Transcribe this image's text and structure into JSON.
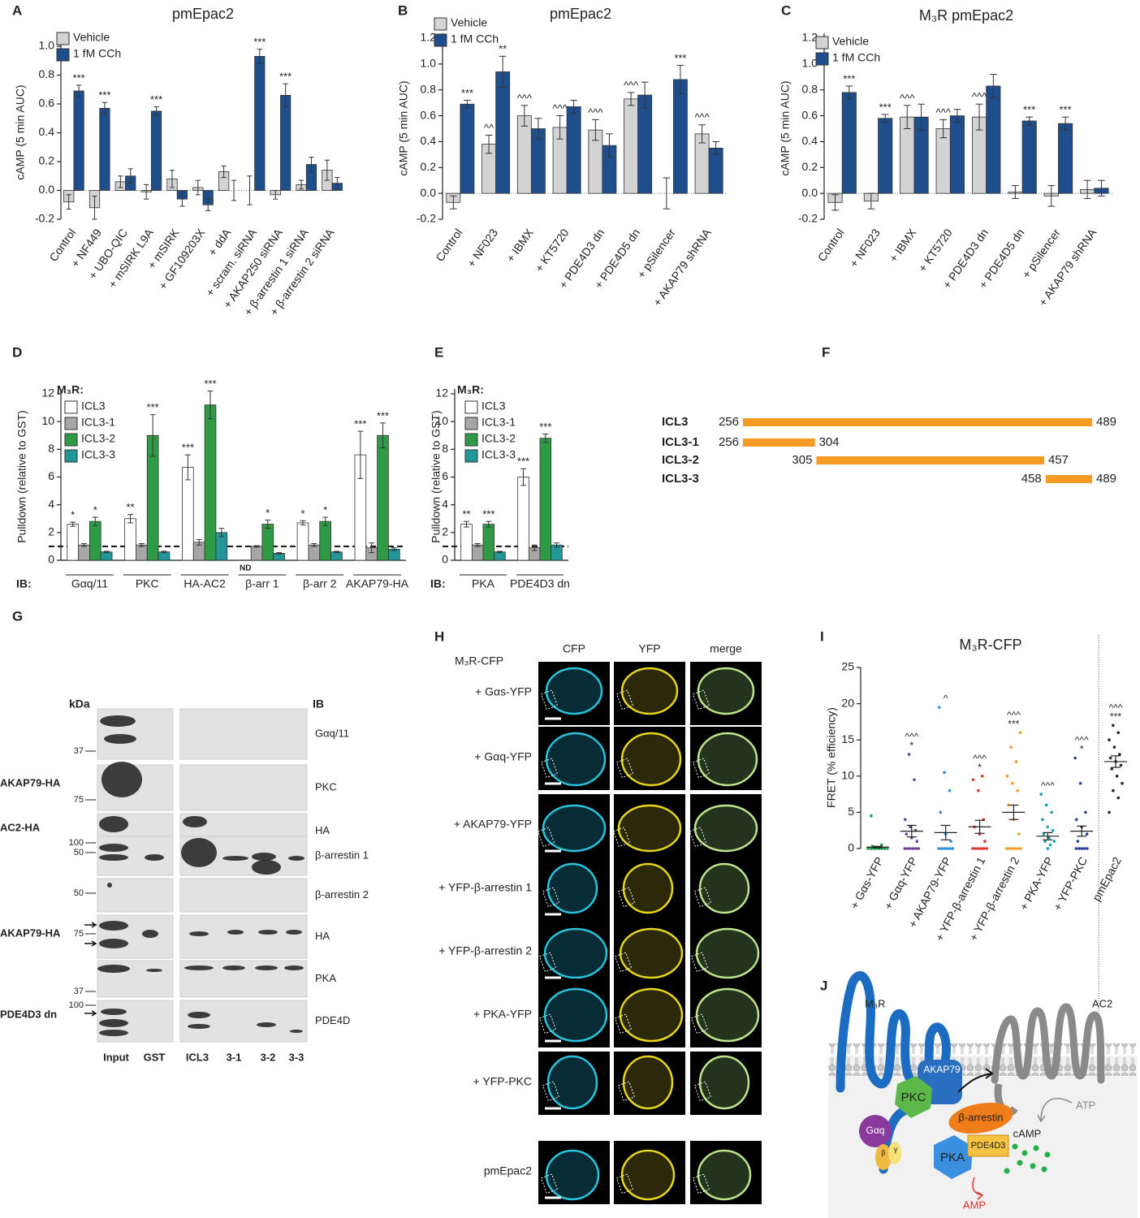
{
  "chart_data": [
    {
      "label": "A",
      "type": "bar",
      "title": "pmEpac2",
      "y_label": "cAMP (5 min AUC)",
      "categories": [
        "Control",
        "+ NF449",
        "+ UBO-QIC",
        "+ mSIRK L9A",
        "+ mSIRK",
        "+ GF109203X",
        "+ ddA",
        "+ scram. siRNA",
        "+ AKAP250 siRNA",
        "+ β-arrestin 1 siRNA",
        "+ β-arrestin 2 siRNA"
      ],
      "ylim": [
        -0.2,
        1
      ],
      "yticks": [
        -0.2,
        {
          "value": 0,
          "label": "0.0"
        },
        0.2,
        0.4,
        0.6,
        0.8,
        {
          "value": 1,
          "label": "1.0"
        }
      ],
      "refline": 0,
      "series": [
        {
          "name": "Vehicle",
          "color": "#d3d3d3",
          "values": [
            -0.08,
            -0.12,
            0.06,
            -0.01,
            0.08,
            0.02,
            0.13,
            0.0,
            -0.03,
            0.04,
            0.14
          ],
          "errors": [
            0.05,
            0.08,
            0.04,
            0.05,
            0.06,
            0.05,
            0.04,
            0.1,
            0.03,
            0.03,
            0.07
          ]
        },
        {
          "name": "1 fM CCh",
          "color": "#1f4e8c",
          "values": [
            0.69,
            0.57,
            0.1,
            0.55,
            -0.06,
            -0.1,
            0.0,
            0.93,
            0.66,
            0.18,
            0.05
          ],
          "errors": [
            0.04,
            0.04,
            0.05,
            0.03,
            0.05,
            0.04,
            0.07,
            0.05,
            0.08,
            0.05,
            0.04
          ],
          "annotations": [
            "***",
            "***",
            null,
            "***",
            null,
            null,
            null,
            "***",
            "***",
            null,
            null
          ]
        }
      ]
    },
    {
      "label": "B",
      "type": "bar",
      "title": "pmEpac2",
      "y_label": "cAMP (5 min AUC)",
      "categories": [
        "Control",
        "+ NF023",
        "+ IBMX",
        "+ KT5720",
        "+ PDE4D3 dn",
        "+ PDE4D5 dn",
        "+ pSilencer",
        "+ AKAP79 shRNA"
      ],
      "ylim": [
        -0.2,
        1.2
      ],
      "yticks": [
        -0.2,
        {
          "value": 0,
          "label": "0.0"
        },
        0.2,
        0.4,
        0.6,
        0.8,
        {
          "value": 1,
          "label": "1.0"
        },
        1.2
      ],
      "refline": 0,
      "series": [
        {
          "name": "Vehicle",
          "color": "#d3d3d3",
          "values": [
            -0.07,
            0.38,
            0.6,
            0.51,
            0.49,
            0.73,
            0.0,
            0.46
          ],
          "errors": [
            0.05,
            0.07,
            0.08,
            0.09,
            0.08,
            0.05,
            0.12,
            0.07
          ],
          "annotations": [
            null,
            "^^",
            "^^^",
            "^^^",
            "^^^",
            "^^^",
            null,
            "^^^"
          ]
        },
        {
          "name": "1 fM CCh",
          "color": "#1f4e8c",
          "values": [
            0.69,
            0.94,
            0.5,
            0.67,
            0.37,
            0.76,
            0.88,
            0.35
          ],
          "errors": [
            0.03,
            0.12,
            0.08,
            0.05,
            0.09,
            0.1,
            0.11,
            0.05
          ],
          "annotations": [
            "***",
            "**",
            null,
            null,
            null,
            null,
            "***",
            null
          ]
        }
      ]
    },
    {
      "label": "C",
      "type": "bar",
      "title": "M₃R pmEpac2",
      "y_label": "cAMP (5 min AUC)",
      "categories": [
        "Control",
        "+ NF023",
        "+ IBMX",
        "+ KT5720",
        "+ PDE4D3 dn",
        "+ PDE4D5 dn",
        "+ pSilencer",
        "+ AKAP79 shRNA"
      ],
      "ylim": [
        -0.2,
        1.2
      ],
      "yticks": [
        -0.2,
        {
          "value": 0,
          "label": "0.0"
        },
        0.2,
        0.4,
        0.6,
        0.8,
        {
          "value": 1,
          "label": "1.0"
        },
        1.2
      ],
      "refline": 0,
      "series": [
        {
          "name": "Vehicle",
          "color": "#d3d3d3",
          "values": [
            -0.07,
            -0.06,
            0.59,
            0.5,
            0.59,
            0.01,
            -0.02,
            0.03
          ],
          "errors": [
            0.06,
            0.06,
            0.09,
            0.07,
            0.1,
            0.05,
            0.08,
            0.07
          ],
          "annotations": [
            null,
            null,
            "^^^",
            "^^^",
            "^^^",
            null,
            null,
            null
          ]
        },
        {
          "name": "1 fM CCh",
          "color": "#1f4e8c",
          "values": [
            0.78,
            0.58,
            0.59,
            0.6,
            0.83,
            0.56,
            0.54,
            0.04
          ],
          "errors": [
            0.05,
            0.03,
            0.1,
            0.05,
            0.09,
            0.03,
            0.05,
            0.06
          ],
          "annotations": [
            "***",
            "***",
            null,
            null,
            null,
            "***",
            "***",
            null
          ]
        }
      ]
    },
    {
      "label": "D",
      "type": "bar",
      "y_label": "Pulldown (relative to GST)",
      "legend_title": "M₃R:",
      "ib_label": "IB:",
      "categories": [
        "Gαq/11",
        "PKC",
        "HA-AC2",
        "β-arr 1",
        "β-arr 2",
        "AKAP79-HA"
      ],
      "ylim": [
        0,
        12
      ],
      "yticks": [
        0,
        2,
        4,
        6,
        8,
        10,
        12
      ],
      "refline": 1,
      "series": [
        {
          "name": "ICL3",
          "color": "#ffffff",
          "values": [
            2.6,
            3.0,
            6.7,
            null,
            2.7,
            7.6
          ],
          "errors": [
            0.15,
            0.3,
            0.9,
            null,
            0.15,
            1.7
          ],
          "annotations": [
            "*",
            "**",
            "***",
            "ND",
            "*",
            "***"
          ]
        },
        {
          "name": "ICL3-1",
          "color": "#a6a6a6",
          "values": [
            1.1,
            1.1,
            1.3,
            1.0,
            1.1,
            0.9
          ],
          "errors": [
            0.1,
            0.1,
            0.2,
            0.05,
            0.1,
            0.35
          ]
        },
        {
          "name": "ICL3-2",
          "color": "#2e9a45",
          "values": [
            2.8,
            9.0,
            11.2,
            2.6,
            2.8,
            9.0
          ],
          "errors": [
            0.3,
            1.5,
            1.0,
            0.3,
            0.3,
            0.9
          ],
          "annotations": [
            "*",
            "***",
            "***",
            "*",
            "*",
            "***"
          ]
        },
        {
          "name": "ICL3-3",
          "color": "#22979a",
          "values": [
            0.6,
            0.6,
            2.0,
            0.5,
            0.6,
            0.8
          ],
          "errors": [
            0.05,
            0.05,
            0.3,
            0.05,
            0.05,
            0.1
          ]
        }
      ]
    },
    {
      "label": "E",
      "type": "bar",
      "y_label": "Pulldown (relative to GST)",
      "legend_title": "M₃R:",
      "ib_label": "IB:",
      "categories": [
        "PKA",
        "PDE4D3 dn"
      ],
      "ylim": [
        0,
        12
      ],
      "yticks": [
        0,
        2,
        4,
        6,
        8,
        10,
        12
      ],
      "refline": 1,
      "series": [
        {
          "name": "ICL3",
          "color": "#ffffff",
          "values": [
            2.6,
            6.0
          ],
          "errors": [
            0.2,
            0.6
          ],
          "annotations": [
            "**",
            "***"
          ]
        },
        {
          "name": "ICL3-1",
          "color": "#a6a6a6",
          "values": [
            1.1,
            0.9
          ],
          "errors": [
            0.1,
            0.2
          ]
        },
        {
          "name": "ICL3-2",
          "color": "#2e9a45",
          "values": [
            2.6,
            8.8
          ],
          "errors": [
            0.2,
            0.3
          ],
          "annotations": [
            "***",
            "***"
          ]
        },
        {
          "name": "ICL3-3",
          "color": "#22979a",
          "values": [
            0.6,
            1.1
          ],
          "errors": [
            0.05,
            0.15
          ]
        }
      ]
    },
    {
      "label": "F",
      "type": "range",
      "color": "#f59a23",
      "categories": [
        "ICL3",
        "ICL3-1",
        "ICL3-2",
        "ICL3-3"
      ],
      "starts": [
        256,
        256,
        305,
        458
      ],
      "ends": [
        489,
        304,
        457,
        489
      ]
    },
    {
      "label": "I",
      "type": "dot",
      "title": "M₃R-CFP",
      "y_label": "FRET (% efficiency)",
      "categories": [
        "+ Gαs-YFP",
        "+ Gαq-YFP",
        "+ AKAP79-YFP",
        "+ YFP-β-arrestin 1",
        "+ YFP-β-arrestin 2",
        "+ PKA-YFP",
        "+ YFP-PKC",
        "pmEpac2"
      ],
      "colors": [
        "#1a9a4a",
        "#6a3d9a",
        "#2b8fd8",
        "#e0312b",
        "#f39a1e",
        "#17a2a8",
        "#2b3f9a",
        "#222222"
      ],
      "ylim": [
        0,
        25
      ],
      "yticks": [
        0,
        5,
        10,
        15,
        20,
        25
      ],
      "means": [
        0.2,
        2.4,
        2.2,
        3.0,
        5.0,
        1.7,
        2.4,
        12.0
      ],
      "errors": [
        0.1,
        0.8,
        1.0,
        0.9,
        1.0,
        0.5,
        0.7,
        0.8
      ],
      "annotations": [
        [],
        [
          "^^^",
          "*"
        ],
        [
          "^"
        ],
        [
          "^^^",
          "*"
        ],
        [
          "^^^",
          "***"
        ],
        [
          "^^^"
        ],
        [
          "^^^",
          "*"
        ],
        [
          "^^^",
          "***"
        ]
      ],
      "points": [
        [
          0,
          0,
          0,
          0,
          0,
          0,
          0,
          0,
          0.3,
          0.5,
          0.2,
          4.5
        ],
        [
          0,
          0,
          0,
          0,
          0,
          0,
          1,
          1.5,
          2,
          2.5,
          3,
          4,
          9.5,
          13
        ],
        [
          0,
          0,
          0,
          0,
          0,
          0,
          1,
          2,
          5,
          8,
          10.5,
          19.5
        ],
        [
          0,
          0,
          0,
          0,
          0,
          0,
          1,
          2,
          3,
          4,
          8,
          9.5,
          10
        ],
        [
          0,
          0,
          0,
          0,
          0,
          0,
          2,
          4,
          6,
          8,
          9,
          10,
          12,
          14,
          16
        ],
        [
          0,
          0.5,
          1,
          1,
          1.5,
          2,
          2.5,
          3,
          4,
          5,
          6,
          7.5
        ],
        [
          0,
          0,
          0,
          0,
          0,
          1,
          2,
          3,
          4,
          5,
          9,
          12.5
        ],
        [
          5,
          7,
          8,
          9,
          10,
          11,
          11.5,
          12,
          12.5,
          13,
          14,
          15,
          16,
          17
        ]
      ]
    }
  ],
  "blot": {
    "label": "G",
    "kda_header": "kDa",
    "ib_header": "IB",
    "rows": [
      {
        "ib": "Gαq/11",
        "marker": 37
      },
      {
        "ib": "PKC",
        "marker": 75,
        "construct": "AKAP79-HA"
      },
      {
        "ib": "HA",
        "marker": 100,
        "construct": "AC2-HA"
      },
      {
        "ib": "β-arrestin 1",
        "marker": 50
      },
      {
        "ib": "β-arrestin 2",
        "marker": 50
      },
      {
        "ib": "HA",
        "marker": 75,
        "construct": "AKAP79-HA"
      },
      {
        "ib": "PKA",
        "marker": 37
      },
      {
        "ib": "PDE4D",
        "marker": 100,
        "construct": "PDE4D3 dn"
      }
    ],
    "lanes": [
      "Input",
      "GST",
      "ICL3",
      "3-1",
      "3-2",
      "3-3"
    ]
  },
  "microscopy": {
    "label": "H",
    "construct": "M₃R-CFP",
    "columns": [
      "CFP",
      "YFP",
      "merge"
    ],
    "rows": [
      "+ Gαs-YFP",
      "+ Gαq-YFP",
      "+ AKAP79-YFP",
      "+ YFP-β-arrestin 1",
      "+ YFP-β-arrestin 2",
      "+ PKA-YFP",
      "+ YFP-PKC",
      "pmEpac2"
    ]
  },
  "schematic": {
    "label": "J",
    "receptor": "M₃R",
    "cyclase": "AC2",
    "akap": "AKAP79",
    "pkc": "PKC",
    "gaq": "Gαq",
    "beta": "β",
    "gamma": "γ",
    "arrestin": "β-arrestin",
    "pka": "PKA",
    "pde": "PDE4D3",
    "camp": "cAMP",
    "atp": "ATP",
    "amp": "AMP"
  }
}
